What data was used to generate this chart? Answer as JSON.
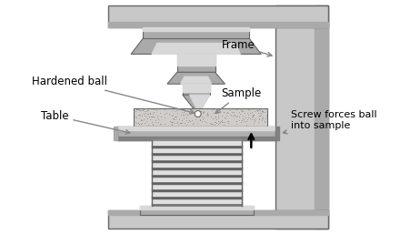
{
  "bg_color": "#ffffff",
  "frame_fill": "#c8c8c8",
  "frame_edge": "#666666",
  "steel_light": "#d8d8d8",
  "steel_mid": "#aaaaaa",
  "steel_dark": "#808080",
  "steel_darker": "#606060",
  "sample_fill": "#d0ccc8",
  "table_fill": "#b0b0b0",
  "table_highlight": "#d8d8d8",
  "spring_light": "#e0e0e0",
  "spring_dark": "#888888",
  "white": "#ffffff",
  "text_color": "#000000",
  "arrow_color": "#888888",
  "labels": {
    "hardened_ball": "Hardened ball",
    "frame": "Frame",
    "sample": "Sample",
    "table": "Table",
    "screw": "Screw forces ball\ninto sample"
  },
  "figsize": [
    4.4,
    2.57
  ],
  "dpi": 100
}
